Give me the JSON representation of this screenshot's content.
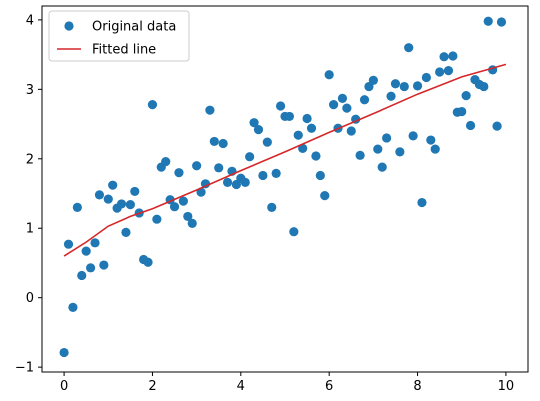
{
  "chart_data": {
    "type": "scatter",
    "title": "",
    "xlabel": "",
    "ylabel": "",
    "xlim": [
      -0.5,
      10.5
    ],
    "ylim": [
      -1.07,
      4.2
    ],
    "x_ticks": [
      0,
      2,
      4,
      6,
      8,
      10
    ],
    "y_ticks": [
      -1,
      0,
      1,
      2,
      3,
      4
    ],
    "x_tick_labels": [
      "0",
      "2",
      "4",
      "6",
      "8",
      "10"
    ],
    "y_tick_labels": [
      "−1",
      "0",
      "1",
      "2",
      "3",
      "4"
    ],
    "grid": false,
    "legend_position": "top-left",
    "series": [
      {
        "name": "Original data",
        "kind": "scatter",
        "color": "#1f77b4",
        "points": [
          [
            0.0,
            -0.79
          ],
          [
            0.1,
            0.77
          ],
          [
            0.2,
            -0.14
          ],
          [
            0.3,
            1.3
          ],
          [
            0.4,
            0.32
          ],
          [
            0.5,
            0.67
          ],
          [
            0.6,
            0.43
          ],
          [
            0.7,
            0.79
          ],
          [
            0.8,
            1.48
          ],
          [
            0.9,
            0.47
          ],
          [
            1.0,
            1.42
          ],
          [
            1.1,
            1.62
          ],
          [
            1.2,
            1.29
          ],
          [
            1.3,
            1.35
          ],
          [
            1.4,
            0.94
          ],
          [
            1.5,
            1.34
          ],
          [
            1.6,
            1.53
          ],
          [
            1.7,
            1.22
          ],
          [
            1.8,
            0.55
          ],
          [
            1.9,
            0.51
          ],
          [
            2.0,
            2.78
          ],
          [
            2.1,
            1.13
          ],
          [
            2.2,
            1.88
          ],
          [
            2.3,
            1.96
          ],
          [
            2.4,
            1.41
          ],
          [
            2.5,
            1.31
          ],
          [
            2.6,
            1.8
          ],
          [
            2.7,
            1.39
          ],
          [
            2.8,
            1.17
          ],
          [
            2.9,
            1.07
          ],
          [
            3.0,
            1.9
          ],
          [
            3.1,
            1.52
          ],
          [
            3.2,
            1.64
          ],
          [
            3.3,
            2.7
          ],
          [
            3.4,
            2.25
          ],
          [
            3.5,
            1.87
          ],
          [
            3.6,
            2.22
          ],
          [
            3.7,
            1.66
          ],
          [
            3.8,
            1.82
          ],
          [
            3.9,
            1.63
          ],
          [
            4.0,
            1.72
          ],
          [
            4.1,
            1.66
          ],
          [
            4.2,
            2.03
          ],
          [
            4.3,
            2.52
          ],
          [
            4.4,
            2.42
          ],
          [
            4.5,
            1.76
          ],
          [
            4.6,
            2.24
          ],
          [
            4.7,
            1.3
          ],
          [
            4.8,
            1.79
          ],
          [
            4.9,
            2.76
          ],
          [
            5.0,
            2.61
          ],
          [
            5.1,
            2.61
          ],
          [
            5.2,
            0.95
          ],
          [
            5.3,
            2.34
          ],
          [
            5.4,
            2.15
          ],
          [
            5.5,
            2.58
          ],
          [
            5.6,
            2.44
          ],
          [
            5.7,
            2.04
          ],
          [
            5.8,
            1.76
          ],
          [
            5.9,
            1.47
          ],
          [
            6.0,
            3.21
          ],
          [
            6.1,
            2.78
          ],
          [
            6.2,
            2.44
          ],
          [
            6.3,
            2.87
          ],
          [
            6.4,
            2.73
          ],
          [
            6.5,
            2.4
          ],
          [
            6.6,
            2.57
          ],
          [
            6.7,
            2.05
          ],
          [
            6.8,
            2.85
          ],
          [
            6.9,
            3.04
          ],
          [
            7.0,
            3.13
          ],
          [
            7.1,
            2.14
          ],
          [
            7.2,
            1.88
          ],
          [
            7.3,
            2.3
          ],
          [
            7.4,
            2.9
          ],
          [
            7.5,
            3.08
          ],
          [
            7.6,
            2.1
          ],
          [
            7.7,
            3.04
          ],
          [
            7.8,
            3.6
          ],
          [
            7.9,
            2.33
          ],
          [
            8.0,
            3.05
          ],
          [
            8.1,
            1.37
          ],
          [
            8.2,
            3.17
          ],
          [
            8.3,
            2.27
          ],
          [
            8.4,
            2.14
          ],
          [
            8.5,
            3.25
          ],
          [
            8.6,
            3.47
          ],
          [
            8.7,
            3.27
          ],
          [
            8.8,
            3.48
          ],
          [
            8.9,
            2.67
          ],
          [
            9.0,
            2.68
          ],
          [
            9.1,
            2.91
          ],
          [
            9.2,
            2.48
          ],
          [
            9.3,
            3.14
          ],
          [
            9.4,
            3.07
          ],
          [
            9.5,
            3.04
          ],
          [
            9.6,
            3.98
          ],
          [
            9.7,
            3.28
          ],
          [
            9.8,
            2.47
          ],
          [
            9.9,
            3.97
          ]
        ]
      },
      {
        "name": "Fitted line",
        "kind": "line",
        "color": "#d62728",
        "points": [
          [
            0.0,
            0.6
          ],
          [
            0.5,
            0.8
          ],
          [
            1.0,
            1.03
          ],
          [
            1.5,
            1.17
          ],
          [
            2.0,
            1.28
          ],
          [
            3.0,
            1.55
          ],
          [
            4.0,
            1.83
          ],
          [
            5.0,
            2.1
          ],
          [
            6.0,
            2.38
          ],
          [
            7.0,
            2.65
          ],
          [
            8.0,
            2.93
          ],
          [
            9.0,
            3.18
          ],
          [
            10.0,
            3.36
          ]
        ]
      }
    ]
  }
}
